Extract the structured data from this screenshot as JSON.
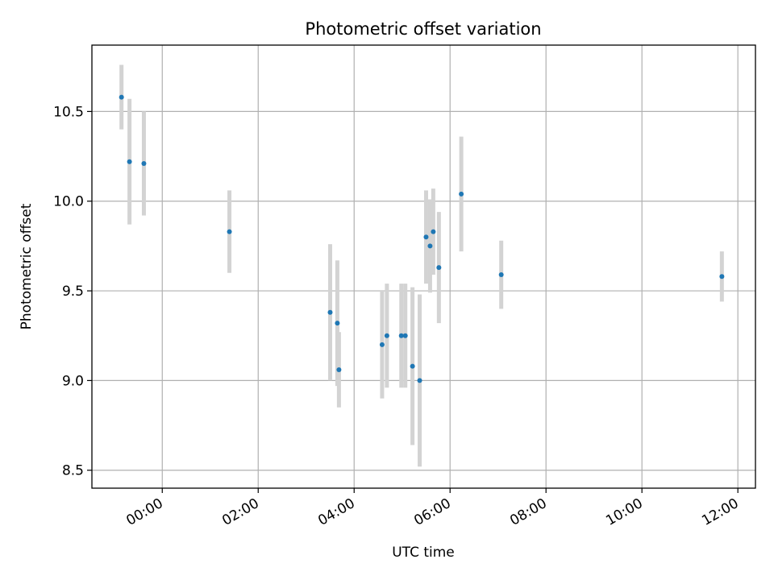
{
  "chart_data": {
    "type": "scatter",
    "title": "Photometric offset variation",
    "xlabel": "UTC time",
    "ylabel": "Photometric offset",
    "x_unit": "UTC time of day",
    "xlim": [
      "-01:28",
      "12:22"
    ],
    "ylim": [
      8.4,
      10.87
    ],
    "x_ticks": [
      "00:00",
      "02:00",
      "04:00",
      "06:00",
      "08:00",
      "10:00",
      "12:00"
    ],
    "y_ticks": [
      "8.5",
      "9.0",
      "9.5",
      "10.0",
      "10.5"
    ],
    "grid": true,
    "legend": "none",
    "colors": {
      "points": "#1f77b4",
      "error_bars": "#d3d3d3",
      "grid": "#b0b0b0"
    },
    "series": [
      {
        "points": [
          {
            "x": "-00:51",
            "y": 10.58,
            "err": 0.18
          },
          {
            "x": "-00:41",
            "y": 10.22,
            "err": 0.35
          },
          {
            "x": "-00:23",
            "y": 10.21,
            "err": 0.29
          },
          {
            "x": "01:24",
            "y": 9.83,
            "err": 0.23
          },
          {
            "x": "03:30",
            "y": 9.38,
            "err": 0.38
          },
          {
            "x": "03:39",
            "y": 9.32,
            "err": 0.35
          },
          {
            "x": "03:41",
            "y": 9.06,
            "err": 0.21
          },
          {
            "x": "04:35",
            "y": 9.2,
            "err": 0.3
          },
          {
            "x": "04:41",
            "y": 9.25,
            "err": 0.29
          },
          {
            "x": "04:59",
            "y": 9.25,
            "err": 0.29
          },
          {
            "x": "05:04",
            "y": 9.25,
            "err": 0.29
          },
          {
            "x": "05:13",
            "y": 9.08,
            "err": 0.44
          },
          {
            "x": "05:22",
            "y": 9.0,
            "err": 0.48
          },
          {
            "x": "05:30",
            "y": 9.8,
            "err": 0.26
          },
          {
            "x": "05:35",
            "y": 9.75,
            "err": 0.26
          },
          {
            "x": "05:39",
            "y": 9.83,
            "err": 0.24
          },
          {
            "x": "05:46",
            "y": 9.63,
            "err": 0.31
          },
          {
            "x": "06:14",
            "y": 10.04,
            "err": 0.32
          },
          {
            "x": "07:04",
            "y": 9.59,
            "err": 0.19
          },
          {
            "x": "11:40",
            "y": 9.58,
            "err": 0.14
          }
        ]
      }
    ]
  }
}
